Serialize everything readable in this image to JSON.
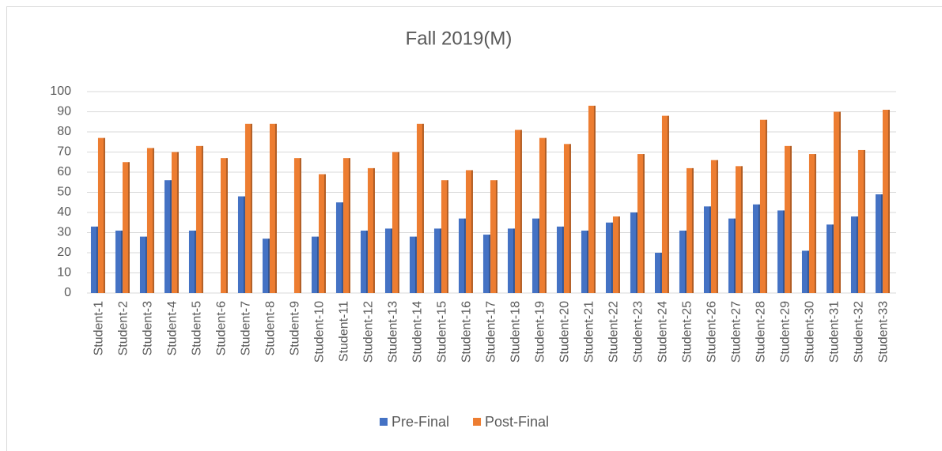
{
  "chart_data": {
    "type": "bar",
    "title": "Fall 2019(M)",
    "categories": [
      "Student-1",
      "Student-2",
      "Student-3",
      "Student-4",
      "Student-5",
      "Student-6",
      "Student-7",
      "Student-8",
      "Student-9",
      "Student-10",
      "Student-11",
      "Student-12",
      "Student-13",
      "Student-14",
      "Student-15",
      "Student-16",
      "Student-17",
      "Student-18",
      "Student-19",
      "Student-20",
      "Student-21",
      "Student-22",
      "Student-23",
      "Student-24",
      "Student-25",
      "Student-26",
      "Student-27",
      "Student-28",
      "Student-29",
      "Student-30",
      "Student-31",
      "Student-32",
      "Student-33"
    ],
    "series": [
      {
        "name": "Pre-Final",
        "color": "#4472c4",
        "values": [
          33,
          31,
          28,
          56,
          31,
          0,
          48,
          27,
          0,
          28,
          45,
          31,
          32,
          28,
          32,
          37,
          29,
          32,
          37,
          33,
          31,
          35,
          40,
          20,
          31,
          43,
          37,
          44,
          41,
          21,
          34,
          38,
          49
        ]
      },
      {
        "name": "Post-Final",
        "color": "#ed7d31",
        "values": [
          77,
          65,
          72,
          70,
          73,
          67,
          84,
          84,
          67,
          59,
          67,
          62,
          70,
          84,
          56,
          61,
          56,
          81,
          77,
          74,
          93,
          38,
          69,
          88,
          62,
          66,
          63,
          86,
          73,
          69,
          90,
          71,
          91
        ]
      }
    ],
    "ylim": [
      0,
      100
    ],
    "yticks": [
      0,
      10,
      20,
      30,
      40,
      50,
      60,
      70,
      80,
      90,
      100
    ],
    "grid": true,
    "legend": "bottom"
  }
}
